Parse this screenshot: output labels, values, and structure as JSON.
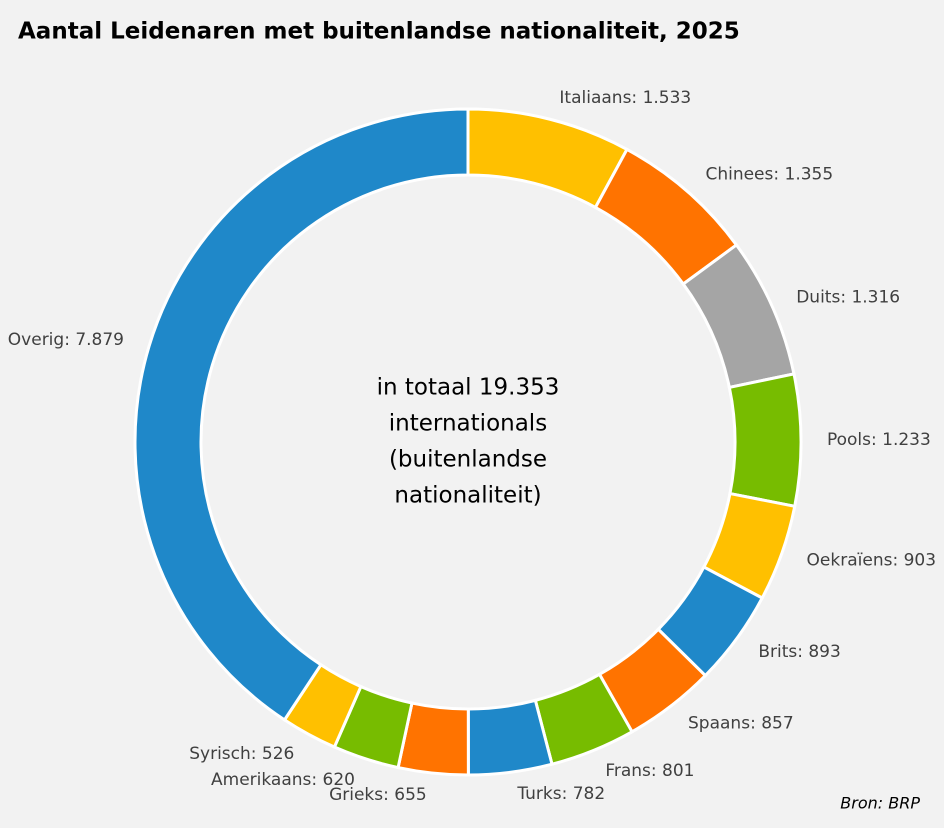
{
  "chart_data": {
    "type": "donut",
    "title": "Aantal Leidenaren met buitenlandse nationaliteit, 2025",
    "values": [
      1533,
      1355,
      1316,
      1233,
      903,
      893,
      857,
      801,
      782,
      655,
      620,
      526,
      7879
    ],
    "value_labels": [
      "Italiaans: 1.533",
      "Chinees: 1.355",
      "Duits: 1.316",
      "Pools: 1.233",
      "Oekraïens: 903",
      "Brits: 893",
      "Spaans: 857",
      "Frans: 801",
      "Turks: 782",
      "Grieks: 655",
      "Amerikaans: 620",
      "Syrisch: 526",
      "Overig: 7.879"
    ],
    "colors": [
      "#FFC000",
      "#FF7300",
      "#A5A5A5",
      "#77BC00",
      "#FFC000",
      "#1F88C9",
      "#FF7300",
      "#77BC00",
      "#1F88C9",
      "#FF7300",
      "#77BC00",
      "#FFC000",
      "#1F88C9"
    ],
    "center_text": [
      "in totaal 19.353",
      "internationals",
      "(buitenlandse",
      "nationaliteit)"
    ],
    "source": "Bron: BRP"
  }
}
